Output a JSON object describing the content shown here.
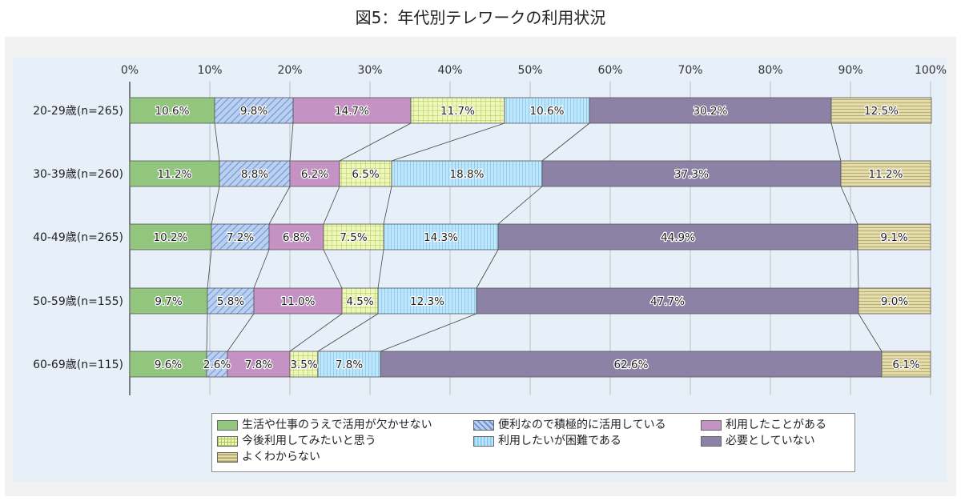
{
  "title": "図5：年代別テレワークの利用状況",
  "chart_data": {
    "type": "bar",
    "orientation": "horizontal",
    "stacked": "100%",
    "categories": [
      "20-29歳(n=265)",
      "30-39歳(n=260)",
      "40-49歳(n=265)",
      "50-59歳(n=155)",
      "60-69歳(n=115)"
    ],
    "xlim": [
      0,
      100
    ],
    "xticks": [
      "0%",
      "10%",
      "20%",
      "30%",
      "40%",
      "50%",
      "60%",
      "70%",
      "80%",
      "90%",
      "100%"
    ],
    "grid": true,
    "legend_position": "bottom",
    "series": [
      {
        "name": "生活や仕事のうえで活用が欠かせない",
        "color": "#92c67f",
        "pattern": "solid",
        "values": [
          10.6,
          11.2,
          10.2,
          9.7,
          9.6
        ],
        "labels": [
          "10.6%",
          "11.2%",
          "10.2%",
          "9.7%",
          "9.6%"
        ]
      },
      {
        "name": "便利なので積極的に活用している",
        "color": "#a9c4ea",
        "pattern": "diagonal",
        "values": [
          9.8,
          8.8,
          7.2,
          5.8,
          2.6
        ],
        "labels": [
          "9.8%",
          "8.8%",
          "7.2%",
          "5.8%",
          "2.6%"
        ]
      },
      {
        "name": "利用したことがある",
        "color": "#c592c4",
        "pattern": "solid",
        "values": [
          14.7,
          6.2,
          6.8,
          11.0,
          7.8
        ],
        "labels": [
          "14.7%",
          "6.2%",
          "6.8%",
          "11.0%",
          "7.8%"
        ]
      },
      {
        "name": "今後利用してみたいと思う",
        "color": "#e7f2a9",
        "pattern": "grid",
        "values": [
          11.7,
          6.5,
          7.5,
          4.5,
          3.5
        ],
        "labels": [
          "11.7%",
          "6.5%",
          "7.5%",
          "4.5%",
          "3.5%"
        ]
      },
      {
        "name": "利用したいが困難である",
        "color": "#a9dcf5",
        "pattern": "vertical",
        "values": [
          10.6,
          18.8,
          14.3,
          12.3,
          7.8
        ],
        "labels": [
          "10.6%",
          "18.8%",
          "14.3%",
          "12.3%",
          "7.8%"
        ]
      },
      {
        "name": "必要としていない",
        "color": "#8c82a6",
        "pattern": "solid",
        "values": [
          30.2,
          37.3,
          44.9,
          47.7,
          62.6
        ],
        "labels": [
          "30.2%",
          "37.3%",
          "44.9%",
          "47.7%",
          "62.6%"
        ]
      },
      {
        "name": "よくわからない",
        "color": "#d8cf9b",
        "pattern": "horizontal",
        "values": [
          12.5,
          11.2,
          9.1,
          9.0,
          6.1
        ],
        "labels": [
          "12.5%",
          "11.2%",
          "9.1%",
          "9.0%",
          "6.1%"
        ]
      }
    ]
  }
}
